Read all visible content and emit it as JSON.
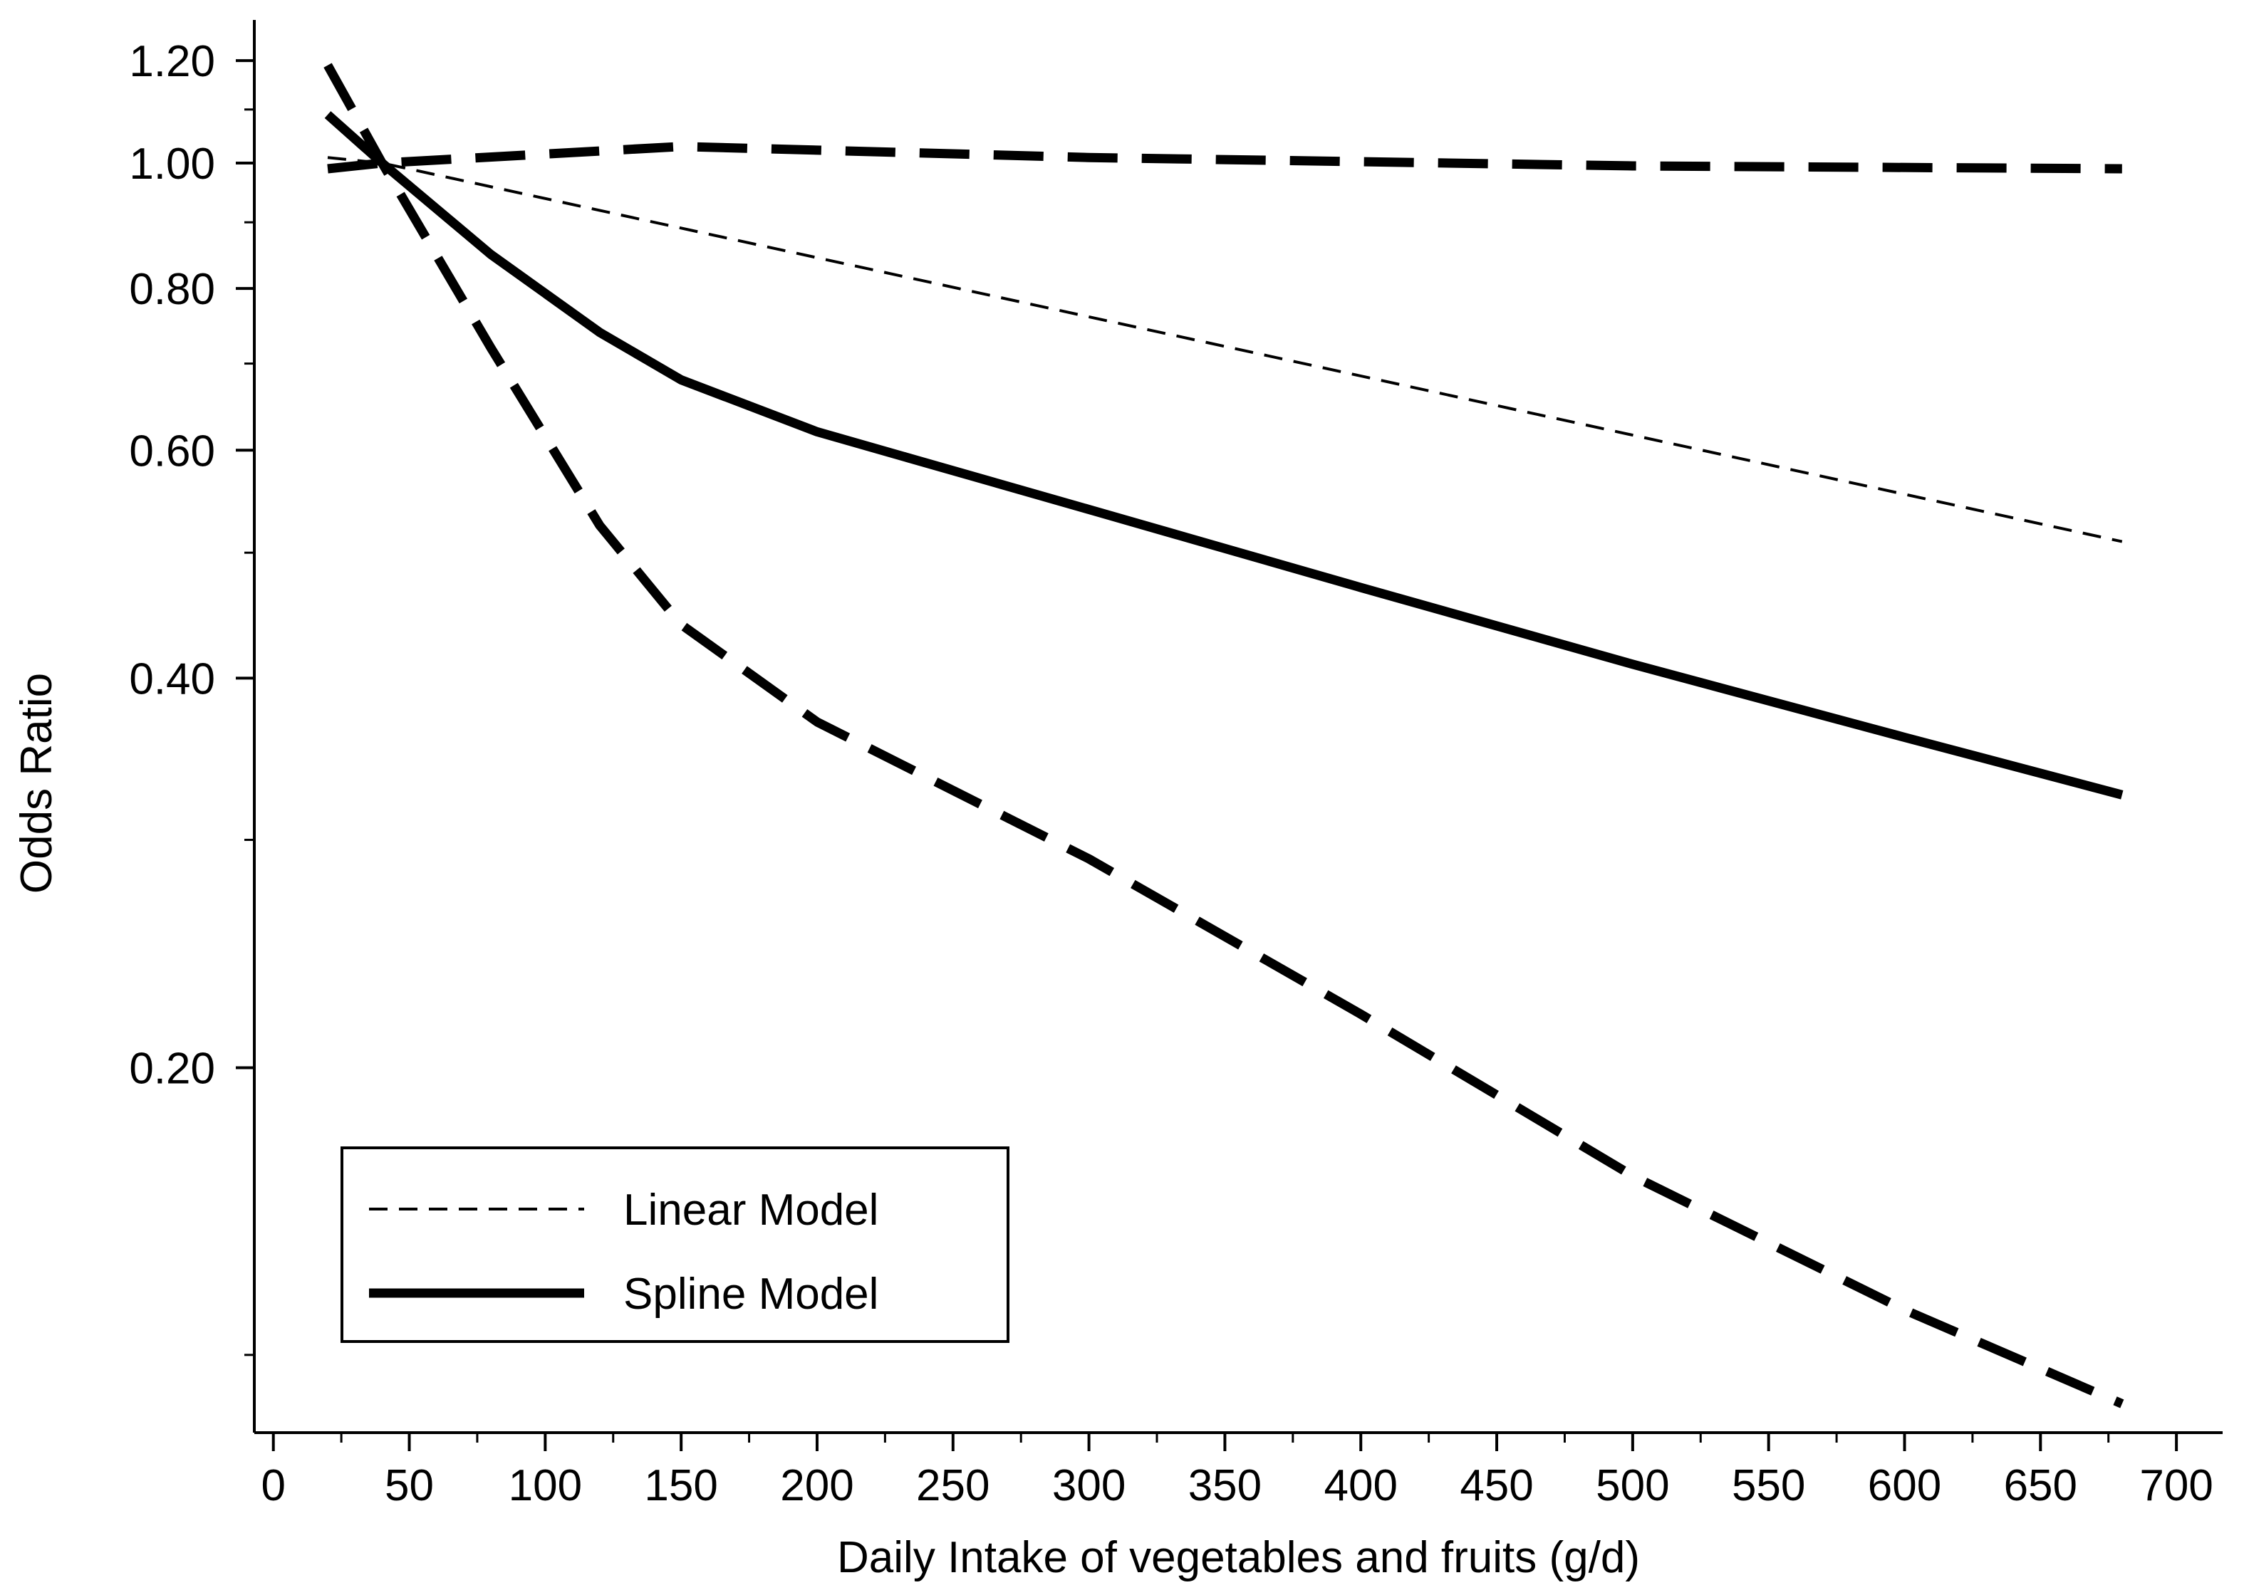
{
  "chart_data": {
    "type": "line",
    "xlabel": "Daily Intake of vegetables and fruits (g/d)",
    "ylabel": "Odds Ratio",
    "y_scale": "log",
    "xlim": [
      -7,
      717
    ],
    "ylim": [
      0.1045,
      1.29
    ],
    "x_ticks": [
      0,
      50,
      100,
      150,
      200,
      250,
      300,
      350,
      400,
      450,
      500,
      550,
      600,
      650,
      700
    ],
    "x_tick_labels": [
      "0",
      "50",
      "100",
      "150",
      "200",
      "250",
      "300",
      "350",
      "400",
      "450",
      "500",
      "550",
      "600",
      "650",
      "700"
    ],
    "y_ticks_major": [
      0.2,
      0.4,
      0.6,
      0.8,
      1.0,
      1.2
    ],
    "y_tick_labels": [
      "0.20",
      "0.40",
      "0.60",
      "0.80",
      "1.00",
      "1.20"
    ],
    "y_ticks_minor": [
      0.12,
      0.3,
      0.5,
      0.7,
      0.9,
      1.1
    ],
    "grid": false,
    "legend_position": "bottom-left",
    "series": [
      {
        "name": "Linear Model",
        "style": "thin-dashed",
        "x": [
          20,
          40,
          680
        ],
        "y": [
          1.01,
          1.0,
          0.51
        ]
      },
      {
        "name": "Spline Model",
        "style": "thick-solid",
        "x": [
          20,
          40,
          80,
          120,
          150,
          200,
          300,
          400,
          500,
          600,
          680
        ],
        "y": [
          1.09,
          1.0,
          0.85,
          0.74,
          0.68,
          0.62,
          0.54,
          0.47,
          0.41,
          0.36,
          0.325
        ]
      },
      {
        "style": "thick-dashed",
        "x": [
          20,
          40,
          150,
          300,
          500,
          680
        ],
        "y": [
          0.99,
          1.0,
          1.03,
          1.01,
          0.995,
          0.99
        ]
      },
      {
        "style": "thick-dashed",
        "x": [
          20,
          40,
          80,
          120,
          150,
          200,
          300,
          400,
          500,
          600,
          680
        ],
        "y": [
          1.19,
          1.0,
          0.72,
          0.525,
          0.44,
          0.37,
          0.29,
          0.22,
          0.165,
          0.13,
          0.11
        ]
      }
    ]
  }
}
